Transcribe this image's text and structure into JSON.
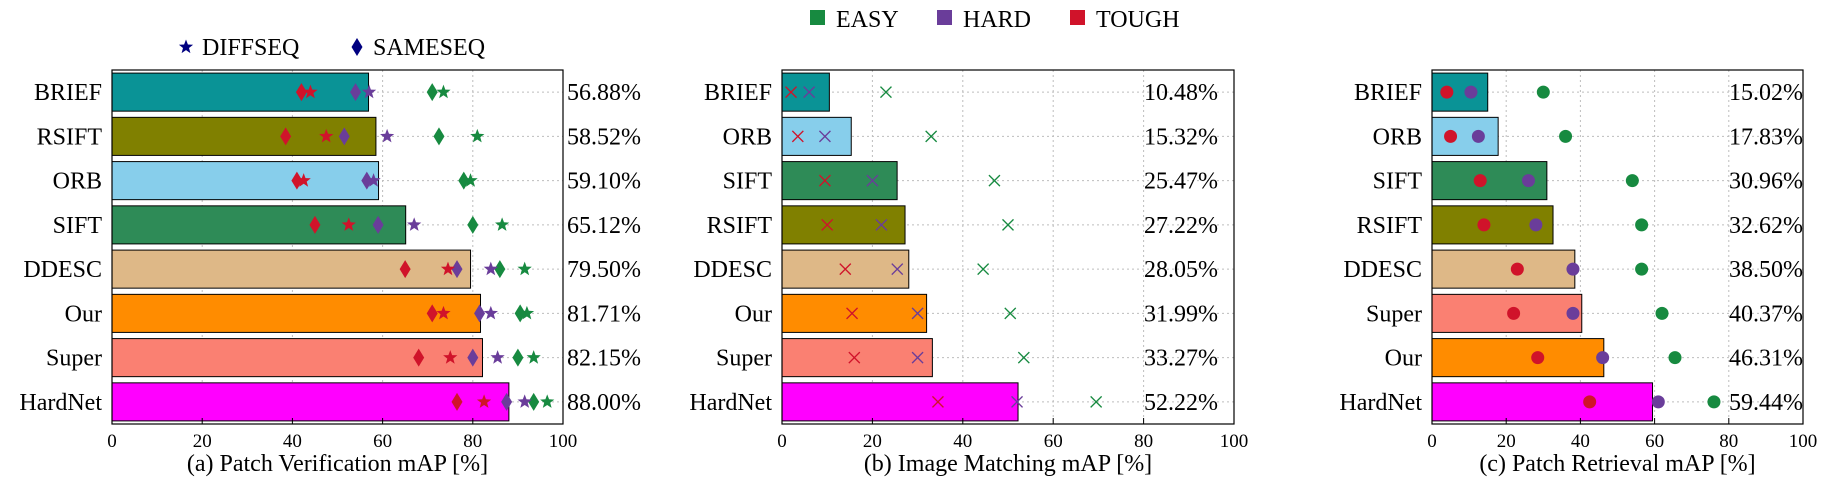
{
  "legend_top": {
    "items": [
      {
        "label": "EASY",
        "color": "#178a40"
      },
      {
        "label": "HARD",
        "color": "#6a3d9a"
      },
      {
        "label": "TOUGH",
        "color": "#d0132a"
      }
    ]
  },
  "chart_data": [
    {
      "type": "bar",
      "title": "",
      "xlabel": "(a) Patch Verification mAP [%]",
      "xlim": [
        0,
        100
      ],
      "xticks": [
        0,
        20,
        40,
        60,
        80,
        100
      ],
      "grid": true,
      "legend": {
        "placement": "top",
        "items": [
          {
            "label": "DIFFSEQ",
            "marker": "star"
          },
          {
            "label": "SAMESEQ",
            "marker": "diamond"
          }
        ]
      },
      "categories": [
        "BRIEF",
        "RSIFT",
        "ORB",
        "SIFT",
        "DDESC",
        "Our",
        "Super",
        "HardNet"
      ],
      "values": [
        56.88,
        58.52,
        59.1,
        65.12,
        79.5,
        81.71,
        82.15,
        88.0
      ],
      "value_labels": [
        "56.88%",
        "58.52%",
        "59.10%",
        "65.12%",
        "79.50%",
        "81.71%",
        "82.15%",
        "88.00%"
      ],
      "bar_colors": [
        "#0a9396",
        "#808000",
        "#87ceeb",
        "#2e8b57",
        "#deb887",
        "#ff8c00",
        "#fa8072",
        "#ff00ff"
      ],
      "markers": [
        {
          "group": "EASY",
          "shape": "star",
          "color": "#178a40",
          "values": [
            73.5,
            81,
            79.5,
            86.5,
            91.5,
            92,
            93.5,
            96.5
          ]
        },
        {
          "group": "EASY",
          "shape": "diamond",
          "color": "#178a40",
          "values": [
            71,
            72.5,
            78,
            80,
            86,
            90.5,
            90,
            93.5
          ]
        },
        {
          "group": "HARD",
          "shape": "star",
          "color": "#6a3d9a",
          "values": [
            57,
            61,
            58,
            67,
            84,
            84,
            85.5,
            91.5
          ]
        },
        {
          "group": "HARD",
          "shape": "diamond",
          "color": "#6a3d9a",
          "values": [
            54,
            51.5,
            56.5,
            59,
            76.5,
            81.5,
            80,
            87.5
          ]
        },
        {
          "group": "TOUGH",
          "shape": "star",
          "color": "#d0132a",
          "values": [
            44,
            47.5,
            42.5,
            52.5,
            74.5,
            73.5,
            75,
            82.5
          ]
        },
        {
          "group": "TOUGH",
          "shape": "diamond",
          "color": "#d0132a",
          "values": [
            42,
            38.5,
            41,
            45,
            65,
            71,
            68,
            76.5
          ]
        }
      ]
    },
    {
      "type": "bar",
      "title": "",
      "xlabel": "(b) Image Matching mAP [%]",
      "xlim": [
        0,
        100
      ],
      "xticks": [
        0,
        20,
        40,
        60,
        80,
        100
      ],
      "grid": true,
      "categories": [
        "BRIEF",
        "ORB",
        "SIFT",
        "RSIFT",
        "DDESC",
        "Our",
        "Super",
        "HardNet"
      ],
      "values": [
        10.48,
        15.32,
        25.47,
        27.22,
        28.05,
        31.99,
        33.27,
        52.22
      ],
      "value_labels": [
        "10.48%",
        "15.32%",
        "25.47%",
        "27.22%",
        "28.05%",
        "31.99%",
        "33.27%",
        "52.22%"
      ],
      "bar_colors": [
        "#0a9396",
        "#87ceeb",
        "#2e8b57",
        "#808000",
        "#deb887",
        "#ff8c00",
        "#fa8072",
        "#ff00ff"
      ],
      "markers": [
        {
          "group": "EASY",
          "shape": "x",
          "color": "#178a40",
          "values": [
            23,
            33,
            47,
            50,
            44.5,
            50.5,
            53.5,
            69.5
          ]
        },
        {
          "group": "HARD",
          "shape": "x",
          "color": "#6a3d9a",
          "values": [
            6,
            9.5,
            20,
            22,
            25.5,
            30,
            30,
            52
          ]
        },
        {
          "group": "TOUGH",
          "shape": "x",
          "color": "#d0132a",
          "values": [
            2,
            3.5,
            9.5,
            10,
            14,
            15.5,
            16,
            34.5
          ]
        }
      ]
    },
    {
      "type": "bar",
      "title": "",
      "xlabel": "(c) Patch Retrieval mAP [%]",
      "xlim": [
        0,
        100
      ],
      "xticks": [
        0,
        20,
        40,
        60,
        80,
        100
      ],
      "grid": true,
      "categories": [
        "BRIEF",
        "ORB",
        "SIFT",
        "RSIFT",
        "DDESC",
        "Super",
        "Our",
        "HardNet"
      ],
      "values": [
        15.02,
        17.83,
        30.96,
        32.62,
        38.5,
        40.37,
        46.31,
        59.44
      ],
      "value_labels": [
        "15.02%",
        "17.83%",
        "30.96%",
        "32.62%",
        "38.50%",
        "40.37%",
        "46.31%",
        "59.44%"
      ],
      "bar_colors": [
        "#0a9396",
        "#87ceeb",
        "#2e8b57",
        "#808000",
        "#deb887",
        "#fa8072",
        "#ff8c00",
        "#ff00ff"
      ],
      "markers": [
        {
          "group": "EASY",
          "shape": "circle",
          "color": "#178a40",
          "values": [
            30,
            36,
            54,
            56.5,
            56.5,
            62,
            65.5,
            76
          ]
        },
        {
          "group": "HARD",
          "shape": "circle",
          "color": "#6a3d9a",
          "values": [
            10.5,
            12.5,
            26,
            28,
            38,
            38,
            46,
            61
          ]
        },
        {
          "group": "TOUGH",
          "shape": "circle",
          "color": "#d0132a",
          "values": [
            4,
            5,
            13,
            14,
            23,
            22,
            28.5,
            42.5
          ]
        }
      ]
    }
  ]
}
